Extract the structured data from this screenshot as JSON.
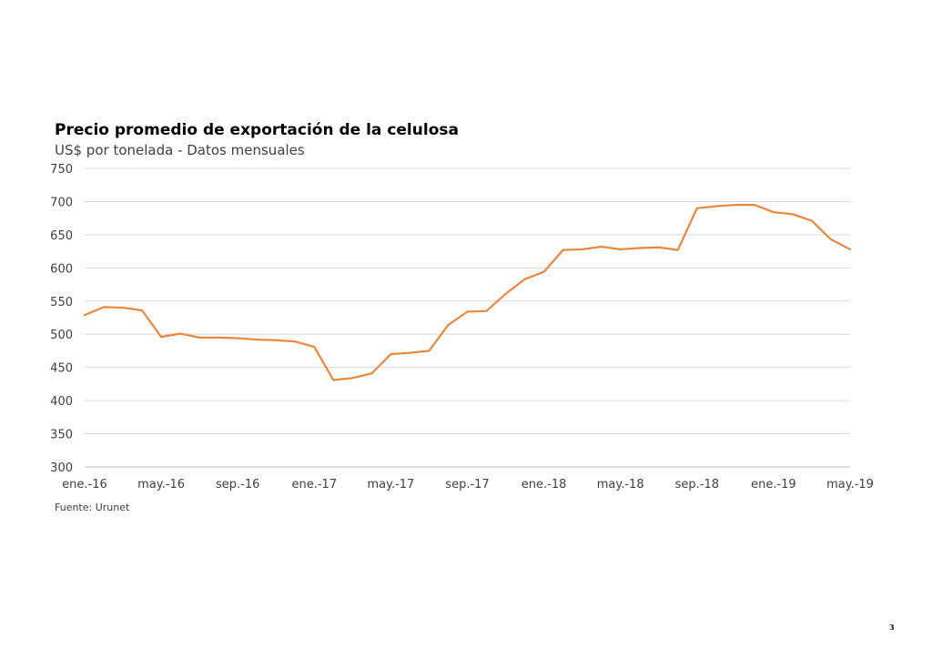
{
  "footer": {
    "source": "Fuente: Urunet",
    "page_number": "3"
  },
  "colors": {
    "line": "#E8873E",
    "gridline": "#D9D9D9",
    "axis_text": "#404040"
  },
  "chart_data": {
    "type": "line",
    "title": "Precio promedio de exportación de la celulosa",
    "subtitle": "US$ por tonelada - Datos mensuales",
    "xlabel": "",
    "ylabel": "",
    "ylim": [
      300,
      750
    ],
    "y_ticks": [
      300,
      350,
      400,
      450,
      500,
      550,
      600,
      650,
      700,
      750
    ],
    "x_tick_labels": [
      "ene.-16",
      "may.-16",
      "sep.-16",
      "ene.-17",
      "may.-17",
      "sep.-17",
      "ene.-18",
      "may.-18",
      "sep.-18",
      "ene.-19",
      "may.-19"
    ],
    "grid": true,
    "legend": "none",
    "x": [
      "ene.-16",
      "feb.-16",
      "mar.-16",
      "abr.-16",
      "may.-16",
      "jun.-16",
      "jul.-16",
      "ago.-16",
      "sep.-16",
      "oct.-16",
      "nov.-16",
      "dic.-16",
      "ene.-17",
      "feb.-17",
      "mar.-17",
      "abr.-17",
      "may.-17",
      "jun.-17",
      "jul.-17",
      "ago.-17",
      "sep.-17",
      "oct.-17",
      "nov.-17",
      "dic.-17",
      "ene.-18",
      "feb.-18",
      "mar.-18",
      "abr.-18",
      "may.-18",
      "jun.-18",
      "jul.-18",
      "ago.-18",
      "sep.-18",
      "oct.-18",
      "nov.-18",
      "dic.-18",
      "ene.-19",
      "feb.-19",
      "mar.-19",
      "abr.-19",
      "may.-19"
    ],
    "series": [
      {
        "values": [
          529,
          541,
          540,
          536,
          496,
          501,
          495,
          495,
          494,
          492,
          491,
          489,
          481,
          431,
          434,
          441,
          470,
          472,
          475,
          514,
          534,
          535,
          561,
          583,
          594,
          627,
          628,
          632,
          628,
          630,
          631,
          627,
          690,
          693,
          695,
          695,
          684,
          681,
          671,
          643,
          628
        ]
      }
    ]
  }
}
